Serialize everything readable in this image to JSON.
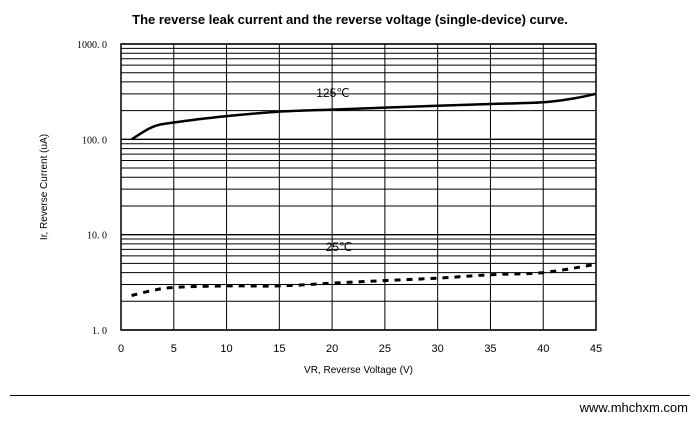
{
  "chart_data": {
    "type": "line",
    "title": "The reverse leak current and the reverse voltage (single-device) curve.",
    "xlabel": "VR, Reverse Voltage (V)",
    "ylabel": "Ir, Reverse Current (uA)",
    "xlim": [
      0,
      45
    ],
    "ylim": [
      1,
      1000
    ],
    "yscale": "log",
    "grid": true,
    "xticks": [
      "0",
      "5",
      "10",
      "15",
      "20",
      "25",
      "30",
      "35",
      "40",
      "45"
    ],
    "yticks": [
      "1.0",
      "10.0",
      "100.0",
      "1000.0"
    ],
    "series": [
      {
        "name": "125℃",
        "style": "solid",
        "x": [
          1,
          3,
          5,
          10,
          15,
          20,
          25,
          30,
          35,
          40,
          43,
          45
        ],
        "y": [
          100,
          135,
          150,
          175,
          195,
          205,
          215,
          225,
          235,
          245,
          270,
          300
        ]
      },
      {
        "name": "25℃",
        "style": "dashed",
        "x": [
          1,
          3,
          5,
          10,
          15,
          20,
          25,
          30,
          35,
          40,
          45
        ],
        "y": [
          2.3,
          2.6,
          2.8,
          2.9,
          2.9,
          3.1,
          3.3,
          3.5,
          3.8,
          4.0,
          4.9
        ]
      }
    ]
  },
  "footer": {
    "website": "www.mhchxm.com"
  }
}
